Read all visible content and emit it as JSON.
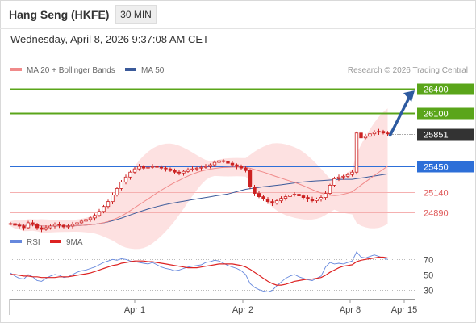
{
  "header": {
    "title": "Hang Seng (HKFE)",
    "timeframe": "30 MIN",
    "datetime": "Wednesday, April 8, 2026 9:37:08 AM CET"
  },
  "credit": "Research © 2026 Trading Central",
  "colors": {
    "resistance": "#5aa51a",
    "pivot": "#2d6fd8",
    "support": "#e05a5a",
    "support_line": "#f5b0b0",
    "band_fill": "#fddcdc",
    "ma20": "#f08a8a",
    "ma50": "#3b5a9a",
    "current_price_bg": "#333333",
    "arrow": "#2d5aa0",
    "rsi": "#6688dd",
    "rsi_ma": "#dd2222",
    "candle": "#cc2222"
  },
  "chart_data": [
    {
      "type": "candlestick",
      "legend": [
        {
          "name": "MA 20 + Bollinger Bands",
          "color": "#f08a8a"
        },
        {
          "name": "MA 50",
          "color": "#3b5a9a"
        }
      ],
      "legend_position": "top-left",
      "ylim": [
        24700,
        26500
      ],
      "x_ticks": [
        "Apr 1",
        "Apr 2",
        "Apr 8",
        "Apr 15"
      ],
      "levels": [
        {
          "value": 26400,
          "label": "26400",
          "kind": "resistance"
        },
        {
          "value": 26100,
          "label": "26100",
          "kind": "resistance"
        },
        {
          "value": 25851,
          "label": "25851",
          "kind": "current"
        },
        {
          "value": 25450,
          "label": "25450",
          "kind": "pivot"
        },
        {
          "value": 25140,
          "label": "25140",
          "kind": "support"
        },
        {
          "value": 24890,
          "label": "24890",
          "kind": "support"
        }
      ],
      "closes": [
        24750,
        24730,
        24720,
        24700,
        24760,
        24740,
        24700,
        24680,
        24700,
        24720,
        24740,
        24730,
        24710,
        24720,
        24740,
        24760,
        24780,
        24800,
        24820,
        24850,
        24900,
        24960,
        25020,
        25100,
        25180,
        25260,
        25320,
        25380,
        25420,
        25450,
        25430,
        25440,
        25450,
        25440,
        25430,
        25420,
        25400,
        25380,
        25370,
        25390,
        25410,
        25420,
        25430,
        25440,
        25450,
        25470,
        25500,
        25520,
        25510,
        25490,
        25470,
        25450,
        25430,
        25400,
        25200,
        25120,
        25080,
        25050,
        25020,
        25000,
        25030,
        25060,
        25080,
        25100,
        25110,
        25090,
        25070,
        25050,
        25030,
        25050,
        25070,
        25120,
        25220,
        25300,
        25320,
        25330,
        25350,
        25380,
        25860,
        25800,
        25820,
        25850,
        25870,
        25880,
        25860,
        25851
      ],
      "forecast_arrow": {
        "from": 25851,
        "to": 26400
      }
    },
    {
      "type": "line",
      "legend": [
        {
          "name": "RSI",
          "color": "#6688dd"
        },
        {
          "name": "9MA",
          "color": "#dd2222"
        }
      ],
      "ylim": [
        20,
        80
      ],
      "y_ticks": [
        70,
        50,
        30
      ],
      "rsi": [
        52,
        48,
        45,
        44,
        50,
        47,
        42,
        41,
        45,
        48,
        50,
        49,
        46,
        47,
        50,
        53,
        55,
        56,
        58,
        60,
        63,
        66,
        68,
        70,
        69,
        71,
        70,
        68,
        67,
        66,
        65,
        64,
        66,
        63,
        60,
        58,
        57,
        55,
        56,
        58,
        60,
        61,
        62,
        63,
        66,
        67,
        69,
        68,
        65,
        62,
        60,
        58,
        55,
        50,
        38,
        33,
        30,
        28,
        27,
        29,
        35,
        40,
        45,
        48,
        50,
        47,
        45,
        43,
        42,
        45,
        48,
        60,
        66,
        64,
        65,
        64,
        66,
        68,
        80,
        73,
        72,
        74,
        76,
        74,
        72,
        70
      ],
      "rsi_ma": [
        50,
        50,
        49,
        48,
        48,
        47,
        47,
        46,
        46,
        46,
        46,
        47,
        47,
        47,
        48,
        49,
        50,
        51,
        52,
        54,
        56,
        58,
        60,
        62,
        63,
        65,
        66,
        67,
        68,
        68,
        68,
        67,
        67,
        66,
        65,
        64,
        63,
        62,
        61,
        60,
        59,
        59,
        59,
        60,
        61,
        62,
        63,
        64,
        64,
        64,
        64,
        63,
        62,
        60,
        57,
        53,
        49,
        45,
        41,
        38,
        36,
        36,
        37,
        39,
        41,
        42,
        43,
        44,
        44,
        45,
        46,
        49,
        53,
        56,
        59,
        61,
        62,
        63,
        67,
        69,
        70,
        71,
        72,
        73,
        73,
        72
      ]
    }
  ]
}
